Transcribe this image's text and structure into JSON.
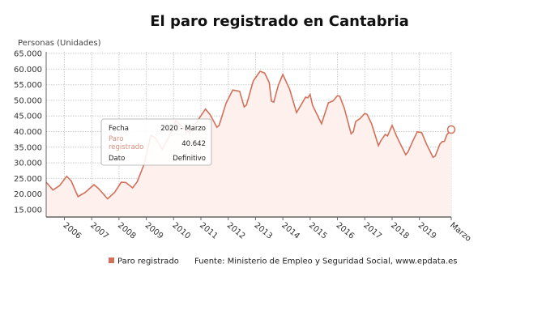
{
  "chart_data": {
    "type": "area",
    "title": "El paro registrado en Cantabria",
    "ylabel": "Personas (Unidades)",
    "xlabel": "",
    "ylim": [
      12700,
      65000
    ],
    "yticks": [
      "15.000",
      "20.000",
      "25.000",
      "30.000",
      "35.000",
      "40.000",
      "45.000",
      "50.000",
      "55.000",
      "60.000",
      "65.000"
    ],
    "ytick_values": [
      15000,
      20000,
      25000,
      30000,
      35000,
      40000,
      45000,
      50000,
      55000,
      60000,
      65000
    ],
    "xlim": [
      "2005-05",
      "2020-03"
    ],
    "xticks": [
      "2006",
      "2007",
      "2008",
      "2009",
      "2010",
      "2011",
      "2012",
      "2013",
      "2014",
      "2015",
      "2016",
      "2017",
      "2018",
      "2019",
      "Marzo"
    ],
    "xtick_dates": [
      "2006-01",
      "2007-01",
      "2008-01",
      "2009-01",
      "2010-01",
      "2011-01",
      "2012-01",
      "2013-01",
      "2014-01",
      "2015-01",
      "2016-01",
      "2017-01",
      "2018-01",
      "2019-01",
      "2020-03"
    ],
    "grid": true,
    "colors": {
      "line": "#d2705a",
      "fill": "#fdf0ed",
      "marker_fill": "#ffffff"
    },
    "series": [
      {
        "name": "Paro registrado",
        "points": [
          [
            "2005-05",
            23800
          ],
          [
            "2005-08",
            21300
          ],
          [
            "2005-11",
            22800
          ],
          [
            "2006-02",
            25700
          ],
          [
            "2006-04",
            24200
          ],
          [
            "2006-07",
            19200
          ],
          [
            "2006-10",
            20500
          ],
          [
            "2007-02",
            23000
          ],
          [
            "2007-04",
            21800
          ],
          [
            "2007-08",
            18500
          ],
          [
            "2007-11",
            20500
          ],
          [
            "2008-02",
            23800
          ],
          [
            "2008-04",
            23700
          ],
          [
            "2008-07",
            22000
          ],
          [
            "2008-09",
            24000
          ],
          [
            "2008-12",
            29500
          ],
          [
            "2009-03",
            38800
          ],
          [
            "2009-05",
            38000
          ],
          [
            "2009-08",
            34300
          ],
          [
            "2009-11",
            38500
          ],
          [
            "2010-02",
            43500
          ],
          [
            "2010-05",
            41500
          ],
          [
            "2010-08",
            39500
          ],
          [
            "2010-12",
            44000
          ],
          [
            "2011-03",
            47200
          ],
          [
            "2011-05",
            45500
          ],
          [
            "2011-08",
            41400
          ],
          [
            "2011-09",
            42000
          ],
          [
            "2011-12",
            49000
          ],
          [
            "2012-03",
            53300
          ],
          [
            "2012-06",
            52900
          ],
          [
            "2012-08",
            47900
          ],
          [
            "2012-09",
            48500
          ],
          [
            "2012-12",
            56200
          ],
          [
            "2013-03",
            59300
          ],
          [
            "2013-05",
            58700
          ],
          [
            "2013-07",
            55700
          ],
          [
            "2013-08",
            49700
          ],
          [
            "2013-09",
            49400
          ],
          [
            "2013-11",
            54800
          ],
          [
            "2014-01",
            58300
          ],
          [
            "2014-04",
            53500
          ],
          [
            "2014-07",
            46100
          ],
          [
            "2014-09",
            48500
          ],
          [
            "2014-11",
            51000
          ],
          [
            "2014-12",
            50800
          ],
          [
            "2015-01",
            51900
          ],
          [
            "2015-02",
            48500
          ],
          [
            "2015-06",
            42500
          ],
          [
            "2015-09",
            49200
          ],
          [
            "2015-11",
            49800
          ],
          [
            "2016-01",
            51500
          ],
          [
            "2016-02",
            51300
          ],
          [
            "2016-04",
            47500
          ],
          [
            "2016-07",
            39300
          ],
          [
            "2016-08",
            40000
          ],
          [
            "2016-09",
            43200
          ],
          [
            "2016-11",
            44200
          ],
          [
            "2017-01",
            45800
          ],
          [
            "2017-02",
            45500
          ],
          [
            "2017-04",
            42500
          ],
          [
            "2017-07",
            35500
          ],
          [
            "2017-08",
            37000
          ],
          [
            "2017-10",
            39100
          ],
          [
            "2017-11",
            38600
          ],
          [
            "2018-01",
            42000
          ],
          [
            "2018-03",
            38500
          ],
          [
            "2018-07",
            32600
          ],
          [
            "2018-08",
            33500
          ],
          [
            "2018-10",
            36800
          ],
          [
            "2018-12",
            39900
          ],
          [
            "2019-02",
            39700
          ],
          [
            "2019-04",
            36200
          ],
          [
            "2019-07",
            31800
          ],
          [
            "2019-08",
            32200
          ],
          [
            "2019-10",
            36000
          ],
          [
            "2019-11",
            36800
          ],
          [
            "2019-12",
            36900
          ],
          [
            "2020-01",
            38900
          ],
          [
            "2020-03",
            40642
          ]
        ]
      }
    ],
    "legend": {
      "position": "bottom-left",
      "label": "Paro registrado"
    },
    "source": "Fuente: Ministerio de Empleo y Seguridad Social, www.epdata.es",
    "tooltip": {
      "rows": [
        {
          "label": "Fecha",
          "value": "2020 - Marzo"
        },
        {
          "label": "Paro registrado",
          "value": "40.642"
        },
        {
          "label": "Dato",
          "value": "Definitivo"
        }
      ]
    }
  }
}
